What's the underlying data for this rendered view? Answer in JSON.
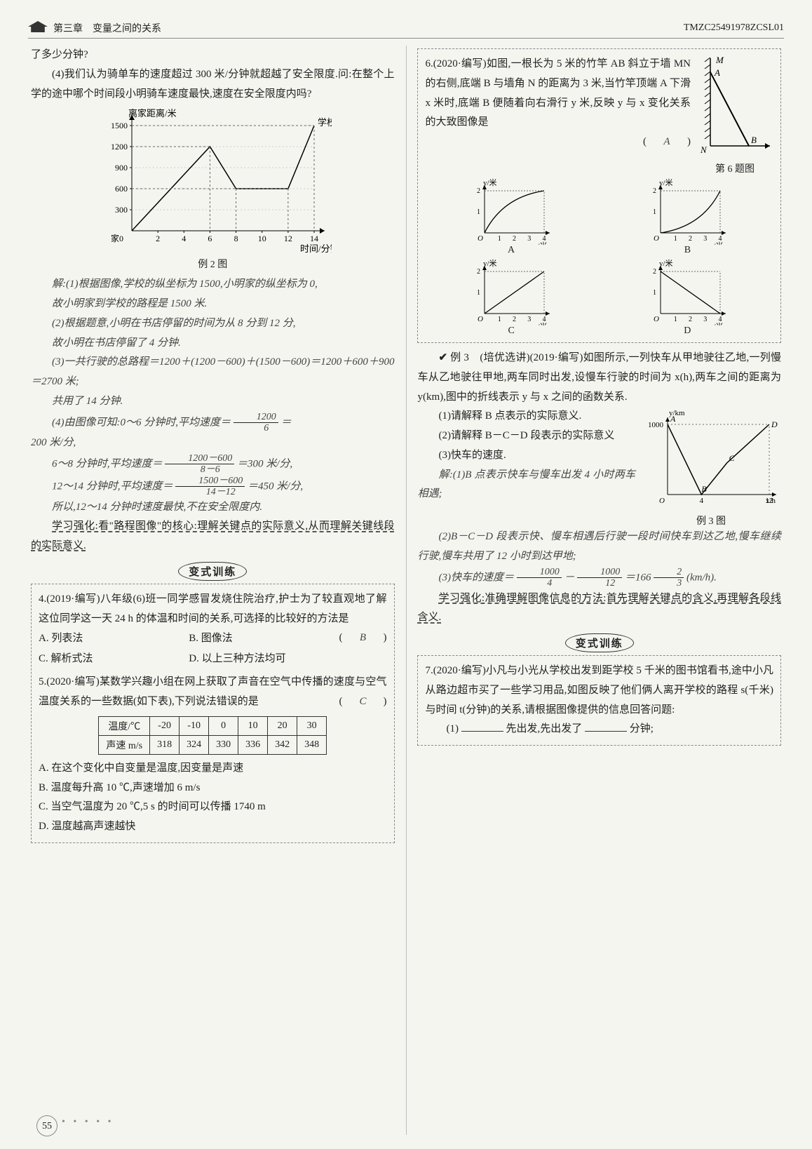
{
  "header": {
    "chapter": "第三章　变量之间的关系",
    "code": "TMZC25491978ZCSL01"
  },
  "left": {
    "q_tail": "了多少分钟?",
    "q4": "(4)我们认为骑单车的速度超过 300 米/分钟就超越了安全限度.问:在整个上学的途中哪个时间段小明骑车速度最快,速度在安全限度内吗?",
    "chart1": {
      "ylabel": "离家距离/米",
      "xlabel": "时间/分钟",
      "ytick": [
        0,
        300,
        600,
        900,
        1200,
        1500
      ],
      "xtick": [
        0,
        2,
        4,
        6,
        8,
        10,
        12,
        14
      ],
      "home_label": "家",
      "school_label": "学校",
      "points": [
        [
          0,
          0
        ],
        [
          6,
          1200
        ],
        [
          8,
          600
        ],
        [
          12,
          600
        ],
        [
          14,
          1500
        ]
      ],
      "caption": "例 2 图",
      "axis_color": "#000",
      "line_color": "#000",
      "bg": "#f5f5f0"
    },
    "sol_lines": [
      "解:(1)根据图像,学校的纵坐标为 1500,小明家的纵坐标为 0,",
      "故小明家到学校的路程是 1500 米.",
      "(2)根据题意,小明在书店停留的时间为从 8 分到 12 分,",
      "故小明在书店停留了 4 分钟.",
      "(3)一共行驶的总路程＝1200＋(1200－600)＋(1500－600)＝1200＋600＋900＝2700 米;",
      "共用了 14 分钟."
    ],
    "sol4_a": "(4)由图像可知:0～6 分钟时,平均速度＝",
    "sol4_frac1_num": "1200",
    "sol4_frac1_den": "6",
    "sol4_a_tail": "＝",
    "sol4_a_val": "200 米/分,",
    "sol4_b": "6～8 分钟时,平均速度＝",
    "sol4_frac2_num": "1200－600",
    "sol4_frac2_den": "8－6",
    "sol4_b_tail": "＝300 米/分,",
    "sol4_c": "12～14 分钟时,平均速度＝",
    "sol4_frac3_num": "1500－600",
    "sol4_frac3_den": "14－12",
    "sol4_c_tail": "＝450 米/分,",
    "sol4_conc": "所以,12～14 分钟时速度最快,不在安全限度内.",
    "strengthen": "学习强化:看\"路程图像\"的核心:理解关键点的实际意义,从而理解关键线段的实际意义.",
    "banner": "变式训练",
    "p4": {
      "stem": "4.(2019·编写)八年级(6)班一同学感冒发烧住院治疗,护士为了较直观地了解这位同学这一天 24 h 的体温和时间的关系,可选择的比较好的方法是",
      "ans": "B",
      "opts": [
        "A. 列表法",
        "B. 图像法",
        "C. 解析式法",
        "D. 以上三种方法均可"
      ]
    },
    "p5": {
      "stem": "5.(2020·编写)某数学兴趣小组在网上获取了声音在空气中传播的速度与空气温度关系的一些数据(如下表),下列说法错误的是",
      "ans": "C",
      "table": {
        "row1_label": "温度/℃",
        "row2_label": "声速 m/s",
        "cols": [
          "-20",
          "-10",
          "0",
          "10",
          "20",
          "30"
        ],
        "vals": [
          "318",
          "324",
          "330",
          "336",
          "342",
          "348"
        ]
      },
      "opts": [
        "A. 在这个变化中自变量是温度,因变量是声速",
        "B. 温度每升高 10 ℃,声速增加 6 m/s",
        "C. 当空气温度为 20 ℃,5 s 的时间可以传播 1740 m",
        "D. 温度越高声速越快"
      ]
    }
  },
  "right": {
    "p6": {
      "stem_a": "6.(2020·编写)如图,一根长为 5 米的竹竿 AB 斜立于墙 MN 的右侧,底端 B 与墙角 N 的距离为 3 米,当竹竿顶端 A 下滑 x 米时,底端 B 便随着向右滑行 y 米,反映 y 与 x 变化关系的大致图像是",
      "ans": "A",
      "fig_caption": "第 6 题图",
      "diagram": {
        "M": "M",
        "A": "A",
        "B": "B",
        "N": "N",
        "line_color": "#000",
        "bg": "#f5f5f0"
      },
      "mini": {
        "ylabel": "y/米",
        "xlabel": "x/米",
        "ymax": 2,
        "xmax": 4,
        "labels": [
          "A",
          "B",
          "C",
          "D"
        ],
        "axis_color": "#000"
      }
    },
    "ex3": {
      "title": "例 3　(培优选讲)(2019·编写)如图所示,一列快车从甲地驶往乙地,一列慢车从乙地驶往甲地,两车同时出发,设慢车行驶的时间为 x(h),两车之间的距离为 y(km),图中的折线表示 y 与 x 之间的函数关系.",
      "q1": "(1)请解释 B 点表示的实际意义.",
      "q2": "(2)请解释 B－C－D 段表示的实际意义",
      "q3": "(3)快车的速度.",
      "sol1": "解:(1)B 点表示快车与慢车出发 4 小时两车相遇;",
      "sol2": "(2)B－C－D 段表示快、慢车相遇后行驶一段时间快车到达乙地,慢车继续行驶,慢车共用了 12 小时到达甲地;",
      "sol3_a": "(3)快车的速度＝",
      "sol3_f1_num": "1000",
      "sol3_f1_den": "4",
      "sol3_mid": "－",
      "sol3_f2_num": "1000",
      "sol3_f2_den": "12",
      "sol3_tail": "＝166",
      "sol3_f3_num": "2",
      "sol3_f3_den": "3",
      "sol3_unit": "(km/h).",
      "chart": {
        "ylabel": "y/km",
        "xlabel": "x/h",
        "ymax": 1000,
        "xA": 0,
        "xB": 4,
        "xD": 12,
        "labels": {
          "A": "A",
          "B": "B",
          "C": "C",
          "D": "D",
          "O": "O"
        },
        "caption": "例 3 图",
        "axis_color": "#000",
        "line_color": "#000"
      }
    },
    "strengthen": "学习强化:准确理解图像信息的方法:首先理解关键点的含义,再理解各段线含义.",
    "banner": "变式训练",
    "p7": {
      "stem": "7.(2020·编写)小凡与小光从学校出发到距学校 5 千米的图书馆看书,途中小凡从路边超市买了一些学习用品,如图反映了他们俩人离开学校的路程 s(千米)与时间 t(分钟)的关系,请根据图像提供的信息回答问题:",
      "q1_a": "(1)",
      "q1_mid": "先出发,先出发了",
      "q1_tail": "分钟;"
    }
  },
  "page_num": "55"
}
